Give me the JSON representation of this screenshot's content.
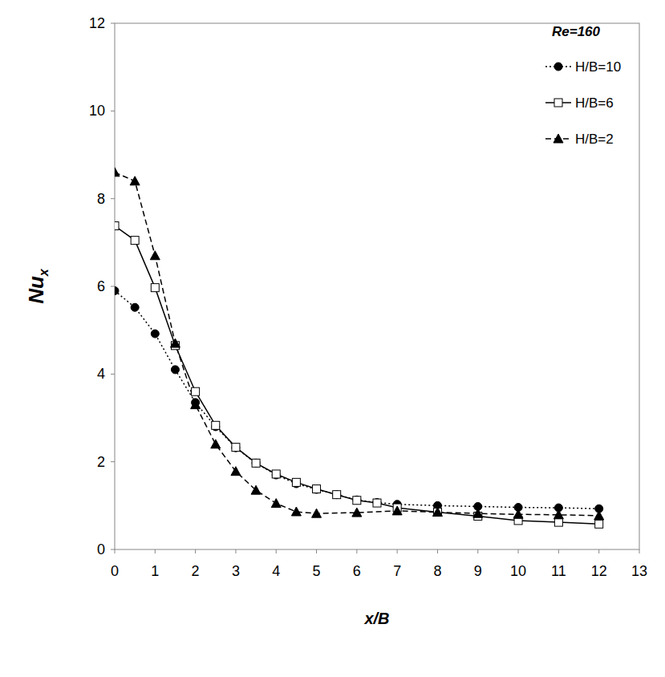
{
  "chart_data": {
    "type": "line",
    "x_label": "x/B",
    "y_label": "Nux",
    "legend_title": "Re=160",
    "legend": "top-right",
    "grid": false,
    "xlim": [
      0,
      13
    ],
    "xticks": [
      0,
      1,
      2,
      3,
      4,
      5,
      6,
      7,
      8,
      9,
      10,
      11,
      12,
      13
    ],
    "ylim": [
      0,
      12
    ],
    "yticks": [
      0,
      2,
      4,
      6,
      8,
      10,
      12
    ],
    "series": [
      {
        "name": "H/B=10",
        "color": "#000000",
        "marker": "circle",
        "line_style": "dotted",
        "x": [
          0,
          0.5,
          1,
          1.5,
          2,
          2.5,
          3,
          3.5,
          4,
          4.5,
          5,
          5.5,
          6,
          6.5,
          7,
          8,
          9,
          10,
          11,
          12
        ],
        "values": [
          5.9,
          5.52,
          4.92,
          4.1,
          3.35,
          2.8,
          2.32,
          1.97,
          1.7,
          1.5,
          1.37,
          1.25,
          1.13,
          1.07,
          1.03,
          1.0,
          0.98,
          0.96,
          0.95,
          0.93
        ]
      },
      {
        "name": "H/B=6",
        "color": "#000000",
        "marker": "square",
        "line_style": "solid",
        "x": [
          0,
          0.5,
          1,
          1.5,
          2,
          2.5,
          3,
          3.5,
          4,
          4.5,
          5,
          5.5,
          6,
          6.5,
          7,
          8,
          9,
          10,
          11,
          12
        ],
        "values": [
          7.38,
          7.05,
          5.97,
          4.65,
          3.6,
          2.83,
          2.33,
          1.97,
          1.72,
          1.53,
          1.38,
          1.25,
          1.12,
          1.06,
          0.95,
          0.85,
          0.76,
          0.66,
          0.62,
          0.58
        ]
      },
      {
        "name": "H/B=2",
        "color": "#000000",
        "marker": "triangle",
        "line_style": "dashed",
        "x": [
          0,
          0.5,
          1,
          1.5,
          2,
          2.5,
          3,
          3.5,
          4,
          4.5,
          5,
          6,
          7,
          8,
          9,
          10,
          11,
          12
        ],
        "values": [
          8.6,
          8.4,
          6.7,
          4.7,
          3.3,
          2.4,
          1.78,
          1.35,
          1.05,
          0.86,
          0.82,
          0.84,
          0.88,
          0.85,
          0.82,
          0.8,
          0.79,
          0.77
        ]
      }
    ]
  }
}
